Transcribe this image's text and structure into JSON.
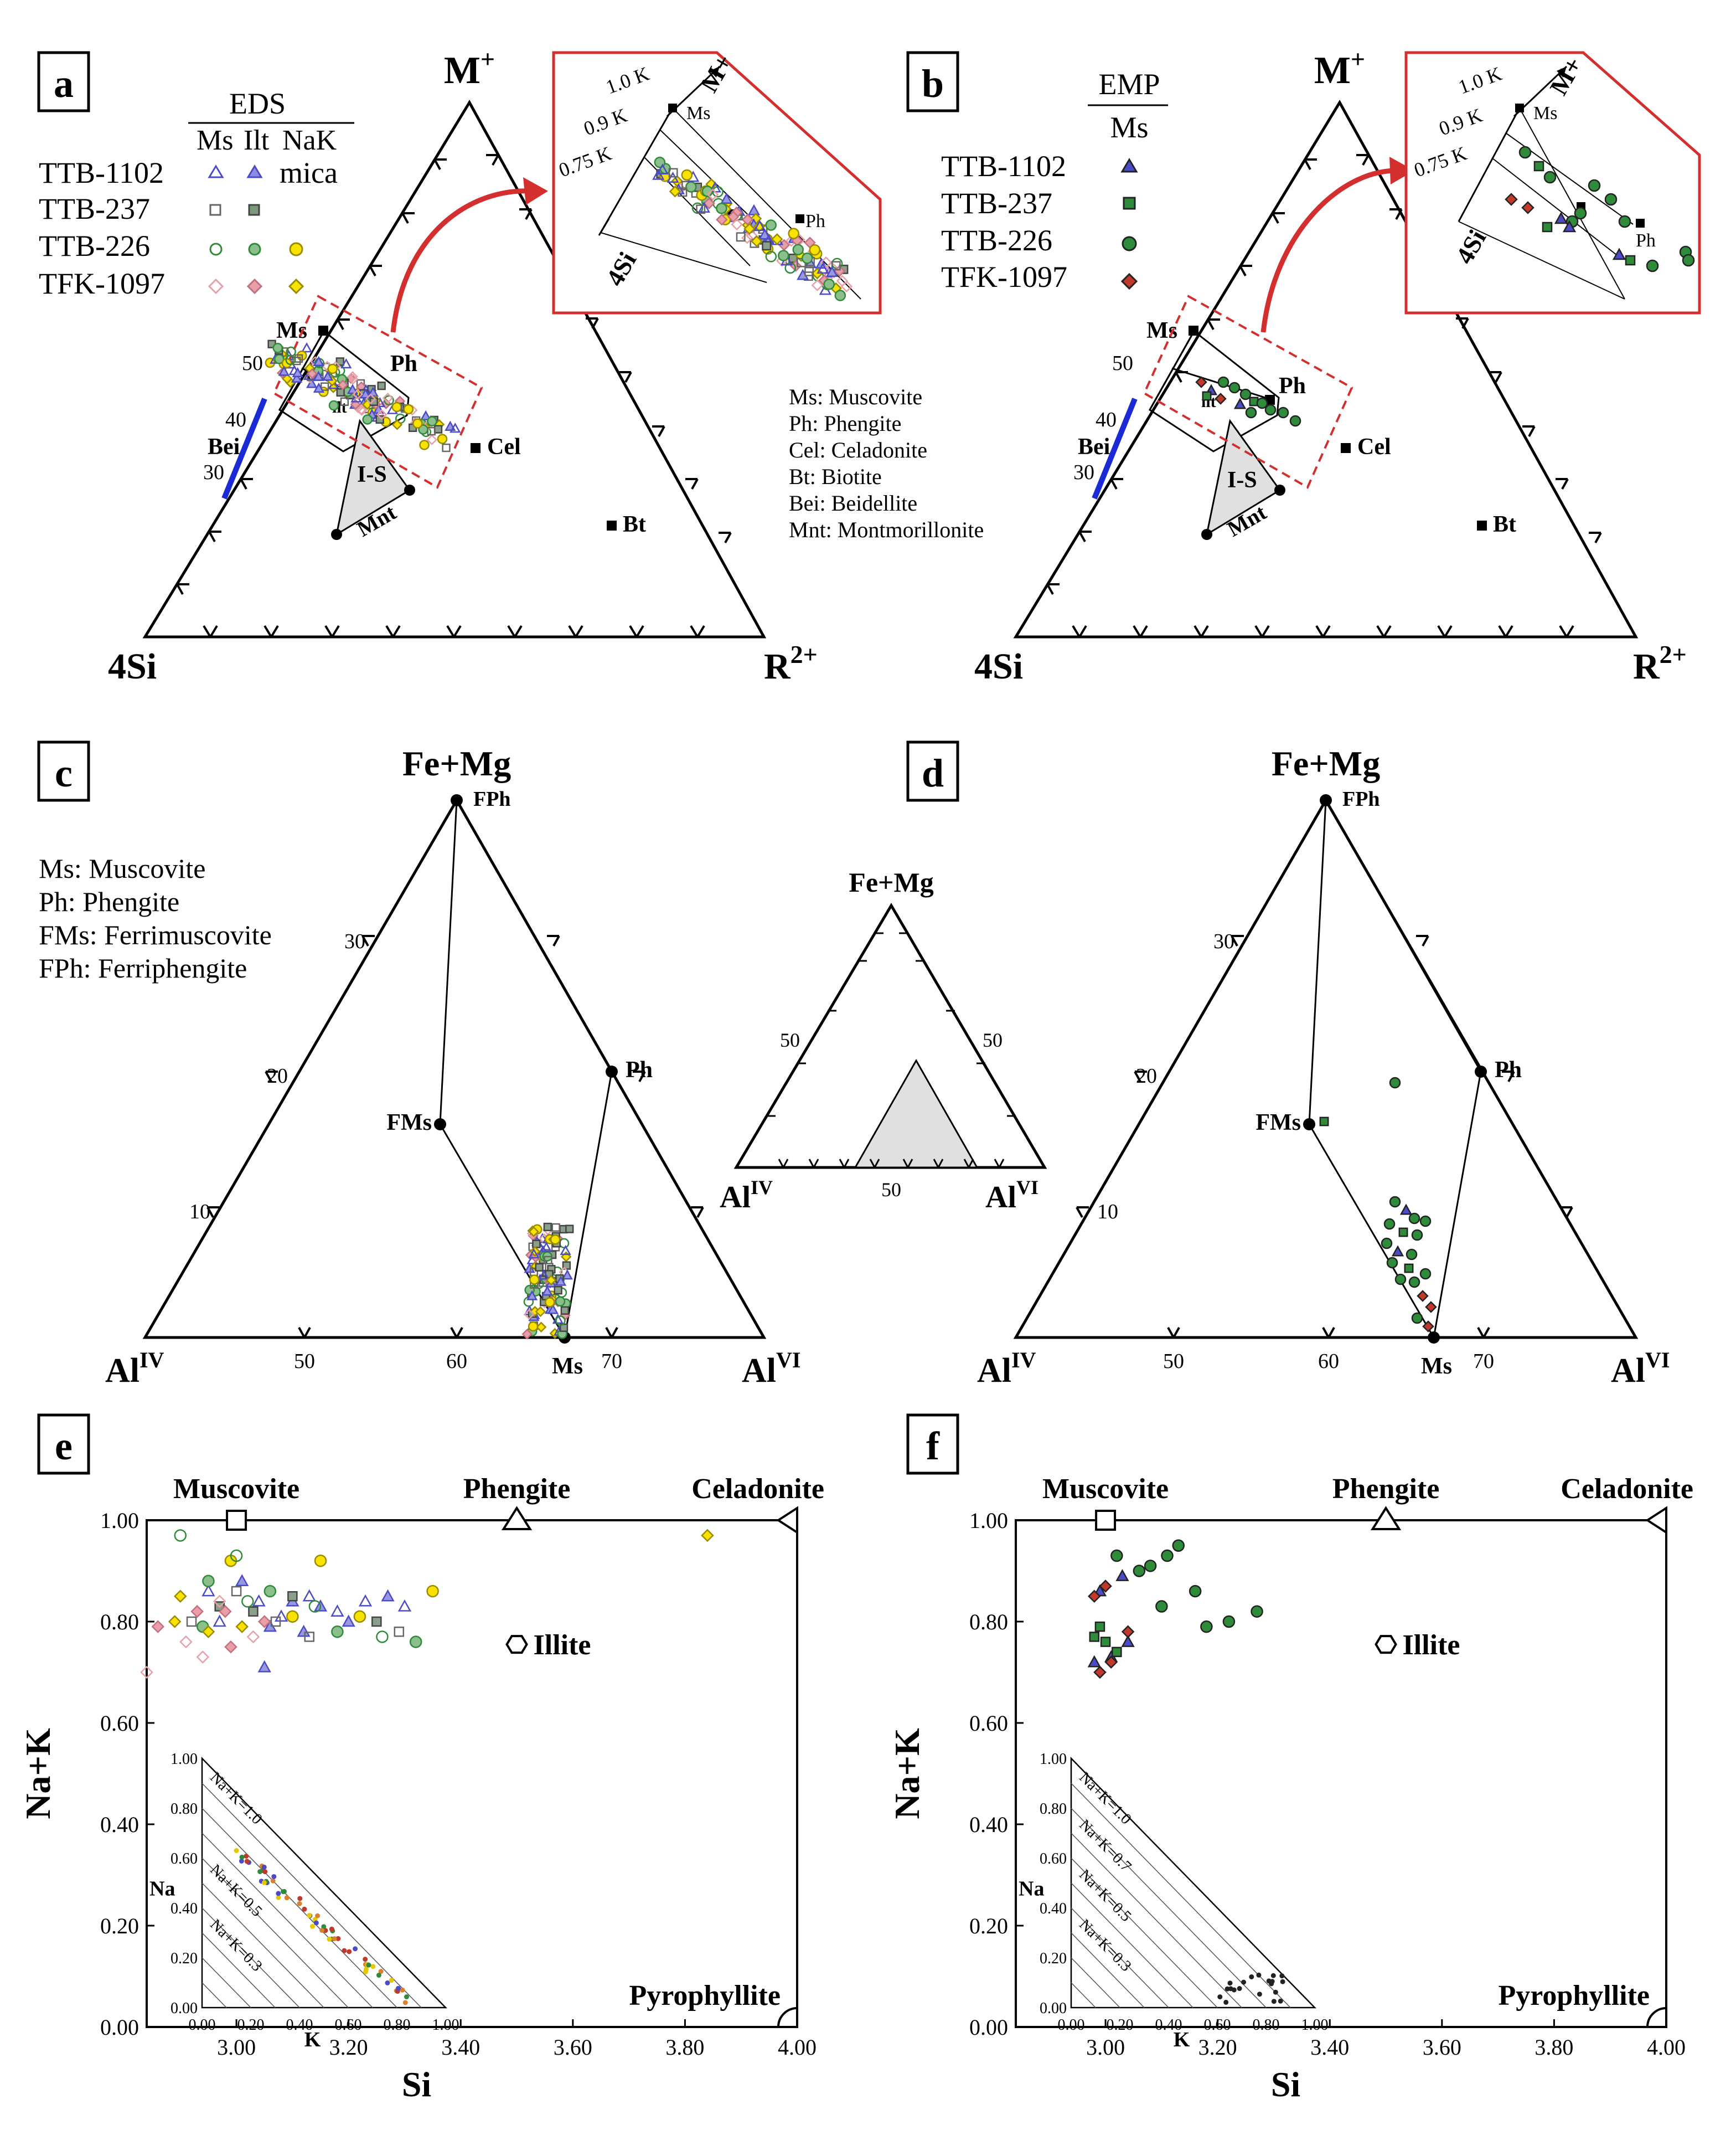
{
  "panel_letters": [
    "a",
    "b",
    "c",
    "d",
    "e",
    "f"
  ],
  "panel_a": {
    "legend": {
      "method": "EDS",
      "columns": [
        "Ms",
        "Ilt",
        "NaK"
      ],
      "note": "mica",
      "samples": [
        "TTB-1102",
        "TTB-237",
        "TTB-226",
        "TFK-1097"
      ]
    },
    "labels": {
      "top": "M",
      "bottom_left": "4Si",
      "bottom_right": "R",
      "top_sup": "+",
      "right_sup": "2+"
    }
  },
  "panel_b": {
    "legend": {
      "method": "EMP",
      "column": "Ms",
      "samples": [
        "TTB-1102",
        "TTB-237",
        "TTB-226",
        "TFK-1097"
      ]
    }
  },
  "mineral_points": {
    "Ms": "Ms",
    "Ph": "Ph",
    "Ilt": "ilt",
    "IS": "I-S",
    "Mnt": "Mnt",
    "Cel": "Cel",
    "Bt": "Bt",
    "Bei": "Bei"
  },
  "tern_ticks": [
    "50",
    "40",
    "30"
  ],
  "inset_labels": {
    "k10": "1.0 K",
    "k09": "0.9 K",
    "k075": "0.75 K",
    "m": "M+",
    "si": "4Si",
    "ms": "Ms",
    "ph": "Ph"
  },
  "abbreviations_1": [
    "Ms: Muscovite",
    "Ph: Phengite",
    "Cel: Celadonite",
    "Bt: Biotite",
    "Bei: Beidellite",
    "Mnt: Montmorillonite"
  ],
  "abbreviations_2": [
    "Ms: Muscovite",
    "Ph: Phengite",
    "FMs: Ferrimuscovite",
    "FPh: Ferriphengite"
  ],
  "panel_cd": {
    "top": "Fe+Mg",
    "left": "Al",
    "right": "Al",
    "left_sup": "IV",
    "right_sup": "VI",
    "points": {
      "FPh": "FPh",
      "Ph": "Ph",
      "FMs": "FMs",
      "Ms": "Ms"
    },
    "bottom_ticks": [
      "50",
      "60",
      "70"
    ],
    "left_ticks": [
      "30",
      "20",
      "10"
    ],
    "mini": {
      "top": "Fe+Mg",
      "left_tick": "50",
      "right_tick": "50",
      "bottom_tick": "50"
    }
  },
  "panel_ef": {
    "top_labels": [
      "Muscovite",
      "Phengite",
      "Celadonite"
    ],
    "illite": "Illite",
    "pyrophyllite": "Pyrophyllite",
    "ylabel": "Na+K",
    "xlabel": "Si",
    "y_ticks": [
      "0.00",
      "0.20",
      "0.40",
      "0.60",
      "0.80",
      "1.00"
    ],
    "x_ticks": [
      "3.00",
      "3.20",
      "3.40",
      "3.60",
      "3.80",
      "4.00"
    ],
    "inset": {
      "ylabel": "Na",
      "xlabel": "K",
      "ticks": [
        "0.00",
        "0.20",
        "0.40",
        "0.60",
        "0.80",
        "1.00"
      ],
      "lines_e": [
        "Na+K=1.0",
        "Na+K=0.5",
        "Na+K=0.3"
      ],
      "lines_f": [
        "Na+K=1.0",
        "Na+K=0.7",
        "Na+K=0.5",
        "Na+K=0.3"
      ]
    }
  },
  "colors": {
    "ms": "#4b4bc8",
    "ilt": "#2e8b3a",
    "nak": "#e6c800",
    "tfk": "#c0392b",
    "pink": "#e8a0a8",
    "gray": "#9aa89a",
    "red": "#d32f2f",
    "blue": "#1a2bd6"
  },
  "chart_data": [
    {
      "panel": "e",
      "type": "scatter",
      "xlabel": "Si",
      "ylabel": "Na+K",
      "xlim": [
        2.84,
        4.0
      ],
      "ylim": [
        0,
        1.0
      ],
      "series": [
        {
          "name": "TTB-1102 (Ms/Ilt)",
          "marker": "triangle",
          "x": [
            2.95,
            3.01,
            3.04,
            3.06,
            3.08,
            3.1,
            3.13,
            3.15,
            3.18,
            3.2,
            3.23,
            3.27,
            3.3,
            3.05,
            2.97,
            3.12
          ],
          "y": [
            0.86,
            0.88,
            0.84,
            0.79,
            0.81,
            0.84,
            0.85,
            0.83,
            0.82,
            0.8,
            0.84,
            0.85,
            0.83,
            0.71,
            0.8,
            0.78
          ]
        },
        {
          "name": "TTB-237 (Ms/Ilt)",
          "marker": "square",
          "x": [
            2.92,
            2.97,
            3.0,
            3.03,
            3.07,
            3.1,
            3.13,
            3.25,
            3.29
          ],
          "y": [
            0.8,
            0.83,
            0.86,
            0.82,
            0.8,
            0.85,
            0.77,
            0.8,
            0.78
          ]
        },
        {
          "name": "TTB-226 (Ms/Ilt/NaK)",
          "marker": "circle",
          "x": [
            2.9,
            2.95,
            2.99,
            3.02,
            3.06,
            3.1,
            3.14,
            3.18,
            3.22,
            3.26,
            3.32,
            3.35,
            3.0,
            2.94,
            3.15
          ],
          "y": [
            0.97,
            0.88,
            0.92,
            0.84,
            0.86,
            0.81,
            0.83,
            0.78,
            0.81,
            0.77,
            0.76,
            0.86,
            0.93,
            0.79,
            0.92
          ]
        },
        {
          "name": "TFK-1097 (Ms/Ilt/NaK)",
          "marker": "diamond",
          "x": [
            2.84,
            2.86,
            2.89,
            2.91,
            2.93,
            2.95,
            2.97,
            2.99,
            3.01,
            3.03,
            3.05,
            2.9,
            2.94,
            2.98,
            3.84
          ],
          "y": [
            0.7,
            0.79,
            0.8,
            0.76,
            0.82,
            0.78,
            0.84,
            0.75,
            0.79,
            0.77,
            0.8,
            0.85,
            0.73,
            0.82,
            0.97
          ]
        }
      ]
    },
    {
      "panel": "f",
      "type": "scatter",
      "xlabel": "Si",
      "ylabel": "Na+K",
      "xlim": [
        2.84,
        4.0
      ],
      "ylim": [
        0,
        1.0
      ],
      "series": [
        {
          "name": "TTB-1102 (EMP Ms)",
          "marker": "triangle",
          "x": [
            2.99,
            3.04,
            3.03,
            3.01,
            2.98
          ],
          "y": [
            0.86,
            0.76,
            0.89,
            0.73,
            0.72
          ]
        },
        {
          "name": "TTB-237 (EMP Ms)",
          "marker": "square",
          "x": [
            2.99,
            2.98,
            3.0,
            3.02
          ],
          "y": [
            0.79,
            0.77,
            0.76,
            0.74
          ]
        },
        {
          "name": "TTB-226 (EMP Ms)",
          "marker": "circle",
          "x": [
            3.02,
            3.06,
            3.08,
            3.1,
            3.11,
            3.13,
            3.16,
            3.18,
            3.22,
            3.27
          ],
          "y": [
            0.93,
            0.9,
            0.91,
            0.83,
            0.93,
            0.95,
            0.86,
            0.79,
            0.8,
            0.82
          ]
        },
        {
          "name": "TFK-1097 (EMP Ms)",
          "marker": "diamond",
          "x": [
            2.98,
            3.0,
            3.01,
            3.04,
            2.99
          ],
          "y": [
            0.85,
            0.87,
            0.72,
            0.78,
            0.7
          ]
        }
      ]
    }
  ]
}
